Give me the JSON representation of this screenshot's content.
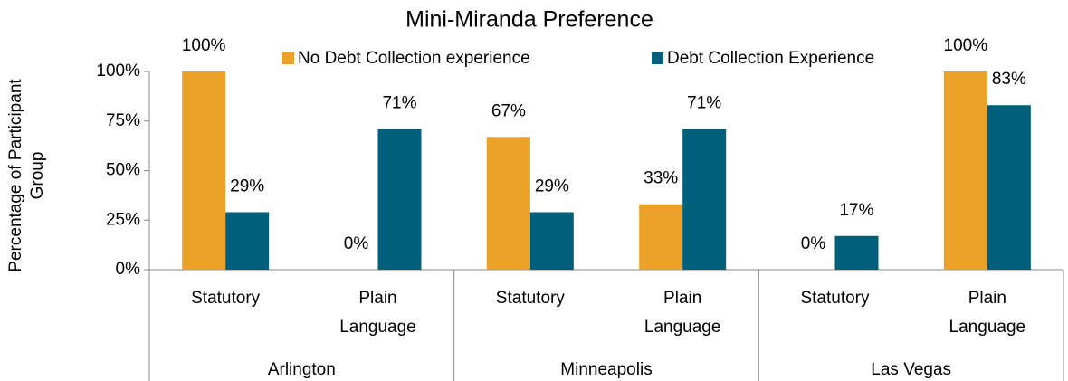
{
  "chart_data": {
    "type": "bar",
    "title": "Mini-Miranda Preference",
    "y_label": "Percentage of Participant Group",
    "categories": [
      "Statutory",
      "Plain Language",
      "Statutory",
      "Plain Language",
      "Statutory",
      "Plain Language"
    ],
    "groups": [
      "Arlington",
      "Minneapolis",
      "Las Vegas"
    ],
    "series": [
      {
        "name": "No Debt Collection experience",
        "color": "#eca229",
        "values": [
          100,
          0,
          67,
          33,
          0,
          100
        ],
        "value_labels": [
          "100%",
          "0%",
          "67%",
          "33%",
          "0%",
          "100%"
        ]
      },
      {
        "name": "Debt Collection Experience",
        "color": "#005f7a",
        "values": [
          29,
          71,
          29,
          71,
          17,
          83
        ],
        "value_labels": [
          "29%",
          "71%",
          "29%",
          "71%",
          "17%",
          "83%"
        ]
      }
    ],
    "ylim": [
      0,
      100
    ],
    "yticks": [
      {
        "value": 0,
        "label": "0%"
      },
      {
        "value": 25,
        "label": "25%"
      },
      {
        "value": 50,
        "label": "50%"
      },
      {
        "value": 75,
        "label": "75%"
      },
      {
        "value": 100,
        "label": "100%"
      }
    ],
    "legend": "top"
  }
}
